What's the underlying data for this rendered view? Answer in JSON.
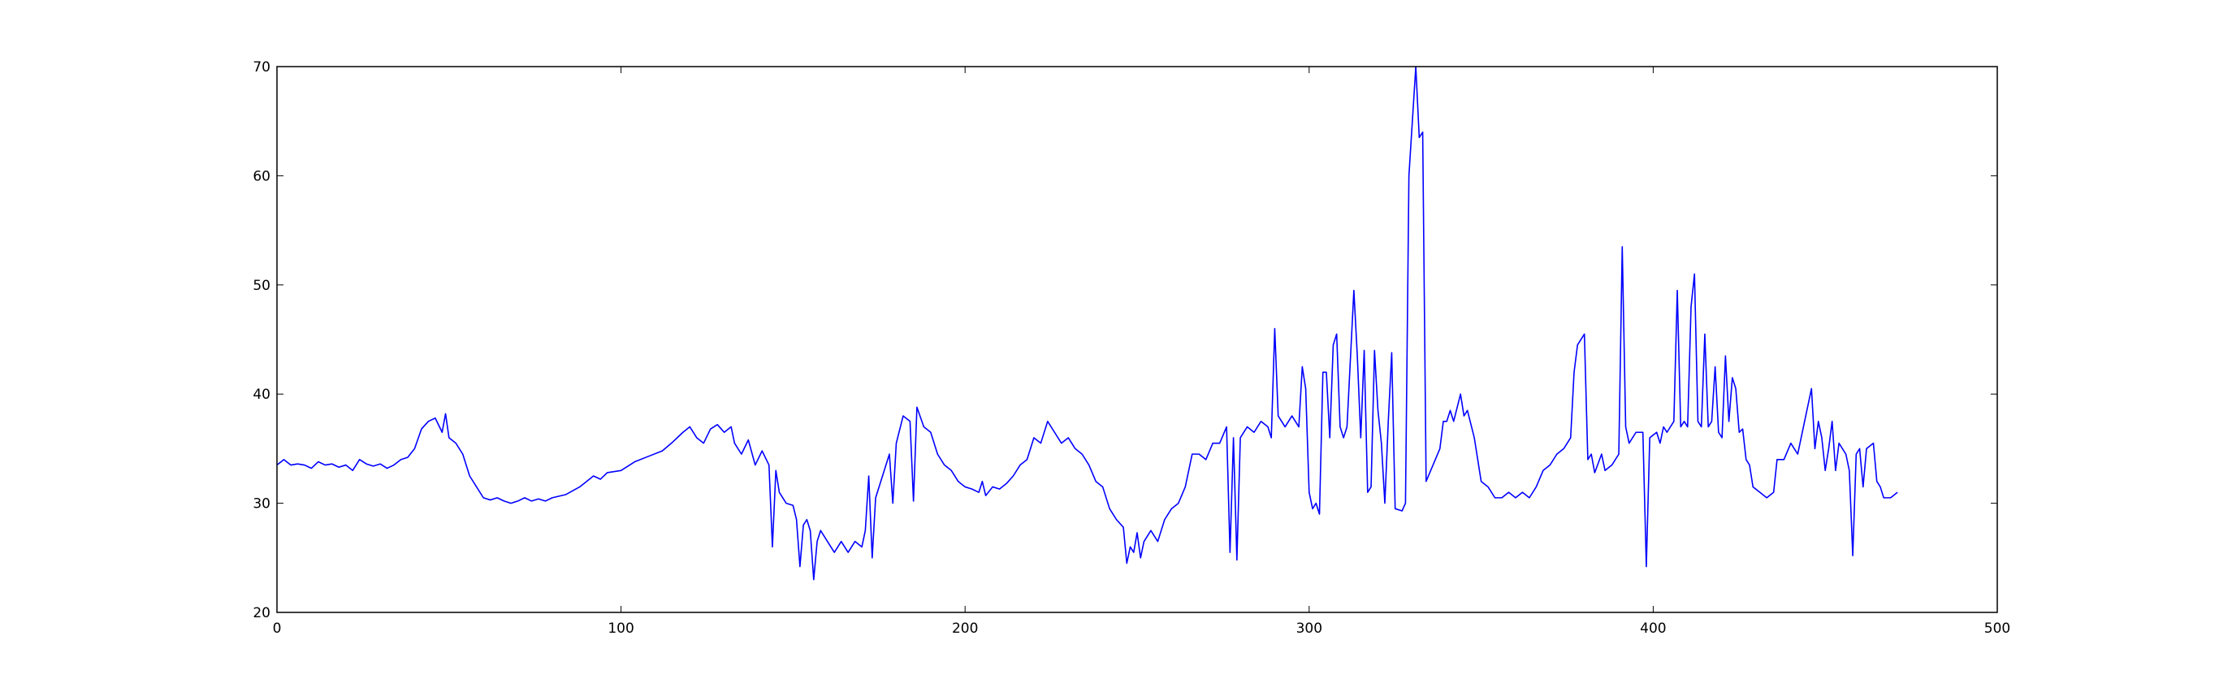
{
  "chart_data": {
    "type": "line",
    "title": "",
    "xlabel": "",
    "ylabel": "",
    "xlim": [
      0,
      500
    ],
    "ylim": [
      20,
      70
    ],
    "x_ticks": [
      0,
      100,
      200,
      300,
      400,
      500
    ],
    "y_ticks": [
      20,
      30,
      40,
      50,
      60,
      70
    ],
    "x_tick_labels": [
      "0",
      "100",
      "200",
      "300",
      "400",
      "500"
    ],
    "y_tick_labels": [
      "20",
      "30",
      "40",
      "50",
      "60",
      "70"
    ],
    "grid": false,
    "legend": "none",
    "line_color": "#0000ff",
    "series": [
      {
        "keypoints": [
          [
            0,
            33.5
          ],
          [
            2,
            34.0
          ],
          [
            4,
            33.5
          ],
          [
            6,
            33.6
          ],
          [
            8,
            33.5
          ],
          [
            10,
            33.2
          ],
          [
            12,
            33.8
          ],
          [
            14,
            33.5
          ],
          [
            16,
            33.6
          ],
          [
            18,
            33.3
          ],
          [
            20,
            33.5
          ],
          [
            22,
            33.0
          ],
          [
            24,
            34.0
          ],
          [
            26,
            33.6
          ],
          [
            28,
            33.4
          ],
          [
            30,
            33.6
          ],
          [
            32,
            33.2
          ],
          [
            34,
            33.5
          ],
          [
            36,
            34.0
          ],
          [
            38,
            34.2
          ],
          [
            40,
            35.0
          ],
          [
            42,
            36.8
          ],
          [
            44,
            37.5
          ],
          [
            46,
            37.8
          ],
          [
            48,
            36.5
          ],
          [
            49,
            38.2
          ],
          [
            50,
            36.0
          ],
          [
            52,
            35.5
          ],
          [
            54,
            34.5
          ],
          [
            56,
            32.5
          ],
          [
            58,
            31.5
          ],
          [
            60,
            30.5
          ],
          [
            62,
            30.3
          ],
          [
            64,
            30.5
          ],
          [
            66,
            30.2
          ],
          [
            68,
            30.0
          ],
          [
            70,
            30.2
          ],
          [
            72,
            30.5
          ],
          [
            74,
            30.2
          ],
          [
            76,
            30.4
          ],
          [
            78,
            30.2
          ],
          [
            80,
            30.5
          ],
          [
            84,
            30.8
          ],
          [
            88,
            31.5
          ],
          [
            90,
            32.0
          ],
          [
            92,
            32.5
          ],
          [
            94,
            32.2
          ],
          [
            96,
            32.8
          ],
          [
            100,
            33.0
          ],
          [
            104,
            33.8
          ],
          [
            108,
            34.3
          ],
          [
            112,
            34.8
          ],
          [
            115,
            35.6
          ],
          [
            118,
            36.5
          ],
          [
            120,
            37.0
          ],
          [
            122,
            36.0
          ],
          [
            124,
            35.5
          ],
          [
            126,
            36.8
          ],
          [
            128,
            37.2
          ],
          [
            130,
            36.5
          ],
          [
            132,
            37.0
          ],
          [
            133,
            35.5
          ],
          [
            135,
            34.5
          ],
          [
            137,
            35.8
          ],
          [
            139,
            33.5
          ],
          [
            141,
            34.8
          ],
          [
            143,
            33.5
          ],
          [
            144,
            26.0
          ],
          [
            145,
            33.0
          ],
          [
            146,
            31.0
          ],
          [
            148,
            30.0
          ],
          [
            150,
            29.8
          ],
          [
            151,
            28.5
          ],
          [
            152,
            24.2
          ],
          [
            153,
            28.0
          ],
          [
            154,
            28.5
          ],
          [
            155,
            27.5
          ],
          [
            156,
            23.0
          ],
          [
            157,
            26.5
          ],
          [
            158,
            27.5
          ],
          [
            160,
            26.5
          ],
          [
            162,
            25.5
          ],
          [
            164,
            26.5
          ],
          [
            166,
            25.5
          ],
          [
            168,
            26.5
          ],
          [
            170,
            26.0
          ],
          [
            171,
            27.5
          ],
          [
            172,
            32.5
          ],
          [
            173,
            25.0
          ],
          [
            174,
            30.5
          ],
          [
            176,
            32.5
          ],
          [
            178,
            34.5
          ],
          [
            179,
            30.0
          ],
          [
            180,
            35.5
          ],
          [
            182,
            38.0
          ],
          [
            184,
            37.5
          ],
          [
            185,
            30.2
          ],
          [
            186,
            38.8
          ],
          [
            188,
            37.0
          ],
          [
            190,
            36.5
          ],
          [
            192,
            34.5
          ],
          [
            194,
            33.5
          ],
          [
            196,
            33.0
          ],
          [
            198,
            32.0
          ],
          [
            200,
            31.5
          ],
          [
            202,
            31.3
          ],
          [
            204,
            31.0
          ],
          [
            205,
            32.0
          ],
          [
            206,
            30.7
          ],
          [
            208,
            31.5
          ],
          [
            210,
            31.3
          ],
          [
            212,
            31.8
          ],
          [
            214,
            32.5
          ],
          [
            216,
            33.5
          ],
          [
            218,
            34.0
          ],
          [
            220,
            36.0
          ],
          [
            222,
            35.5
          ],
          [
            224,
            37.5
          ],
          [
            226,
            36.5
          ],
          [
            228,
            35.5
          ],
          [
            230,
            36.0
          ],
          [
            232,
            35.0
          ],
          [
            234,
            34.5
          ],
          [
            236,
            33.5
          ],
          [
            238,
            32.0
          ],
          [
            240,
            31.5
          ],
          [
            242,
            29.5
          ],
          [
            244,
            28.5
          ],
          [
            246,
            27.8
          ],
          [
            247,
            24.5
          ],
          [
            248,
            26.0
          ],
          [
            249,
            25.5
          ],
          [
            250,
            27.3
          ],
          [
            251,
            25.0
          ],
          [
            252,
            26.5
          ],
          [
            254,
            27.5
          ],
          [
            256,
            26.5
          ],
          [
            258,
            28.5
          ],
          [
            260,
            29.5
          ],
          [
            262,
            30.0
          ],
          [
            264,
            31.5
          ],
          [
            266,
            34.5
          ],
          [
            268,
            34.5
          ],
          [
            270,
            34.0
          ],
          [
            272,
            35.5
          ],
          [
            274,
            35.5
          ],
          [
            276,
            37.0
          ],
          [
            277,
            25.5
          ],
          [
            278,
            36.0
          ],
          [
            279,
            24.8
          ],
          [
            280,
            36.0
          ],
          [
            282,
            37.0
          ],
          [
            284,
            36.5
          ],
          [
            286,
            37.5
          ],
          [
            288,
            37.0
          ],
          [
            289,
            36.0
          ],
          [
            290,
            46.0
          ],
          [
            291,
            38.0
          ],
          [
            293,
            37.0
          ],
          [
            295,
            38.0
          ],
          [
            297,
            37.0
          ],
          [
            298,
            42.5
          ],
          [
            299,
            40.5
          ],
          [
            300,
            31.0
          ],
          [
            301,
            29.5
          ],
          [
            302,
            30.0
          ],
          [
            303,
            29.0
          ],
          [
            304,
            42.0
          ],
          [
            305,
            42.0
          ],
          [
            306,
            36.0
          ],
          [
            307,
            44.5
          ],
          [
            308,
            45.5
          ],
          [
            309,
            37.0
          ],
          [
            310,
            36.0
          ],
          [
            311,
            37.0
          ],
          [
            313,
            49.5
          ],
          [
            314,
            43.5
          ],
          [
            315,
            36.0
          ],
          [
            316,
            44.0
          ],
          [
            317,
            31.0
          ],
          [
            318,
            31.5
          ],
          [
            319,
            44.0
          ],
          [
            320,
            38.5
          ],
          [
            321,
            35.5
          ],
          [
            322,
            30.0
          ],
          [
            323,
            37.5
          ],
          [
            324,
            43.8
          ],
          [
            325,
            29.5
          ],
          [
            327,
            29.3
          ],
          [
            328,
            30.0
          ],
          [
            329,
            60.0
          ],
          [
            330,
            65.0
          ],
          [
            331,
            70.0
          ],
          [
            332,
            63.5
          ],
          [
            333,
            64.0
          ],
          [
            334,
            32.0
          ],
          [
            336,
            33.5
          ],
          [
            338,
            35.0
          ],
          [
            339,
            37.5
          ],
          [
            340,
            37.5
          ],
          [
            341,
            38.5
          ],
          [
            342,
            37.5
          ],
          [
            344,
            40.0
          ],
          [
            345,
            38.0
          ],
          [
            346,
            38.5
          ],
          [
            348,
            36.0
          ],
          [
            350,
            32.0
          ],
          [
            352,
            31.5
          ],
          [
            354,
            30.5
          ],
          [
            356,
            30.5
          ],
          [
            358,
            31.0
          ],
          [
            360,
            30.5
          ],
          [
            362,
            31.0
          ],
          [
            364,
            30.5
          ],
          [
            366,
            31.5
          ],
          [
            368,
            33.0
          ],
          [
            370,
            33.5
          ],
          [
            372,
            34.5
          ],
          [
            374,
            35.0
          ],
          [
            376,
            36.0
          ],
          [
            377,
            42.0
          ],
          [
            378,
            44.5
          ],
          [
            380,
            45.5
          ],
          [
            381,
            34.0
          ],
          [
            382,
            34.5
          ],
          [
            383,
            32.8
          ],
          [
            385,
            34.5
          ],
          [
            386,
            33.0
          ],
          [
            388,
            33.5
          ],
          [
            390,
            34.5
          ],
          [
            391,
            53.5
          ],
          [
            392,
            37.0
          ],
          [
            393,
            35.5
          ],
          [
            395,
            36.5
          ],
          [
            397,
            36.5
          ],
          [
            398,
            24.2
          ],
          [
            399,
            36.0
          ],
          [
            401,
            36.5
          ],
          [
            402,
            35.5
          ],
          [
            403,
            37.0
          ],
          [
            404,
            36.5
          ],
          [
            406,
            37.5
          ],
          [
            407,
            49.5
          ],
          [
            408,
            37.0
          ],
          [
            409,
            37.5
          ],
          [
            410,
            37.0
          ],
          [
            411,
            48.0
          ],
          [
            412,
            51.0
          ],
          [
            413,
            37.5
          ],
          [
            414,
            37.0
          ],
          [
            415,
            45.5
          ],
          [
            416,
            37.0
          ],
          [
            417,
            37.5
          ],
          [
            418,
            42.5
          ],
          [
            419,
            36.5
          ],
          [
            420,
            36.0
          ],
          [
            421,
            43.5
          ],
          [
            422,
            37.5
          ],
          [
            423,
            41.5
          ],
          [
            424,
            40.5
          ],
          [
            425,
            36.5
          ],
          [
            426,
            36.8
          ],
          [
            427,
            34.0
          ],
          [
            428,
            33.5
          ],
          [
            429,
            31.5
          ],
          [
            431,
            31.0
          ],
          [
            433,
            30.5
          ],
          [
            435,
            31.0
          ],
          [
            436,
            34.0
          ],
          [
            438,
            34.0
          ],
          [
            440,
            35.5
          ],
          [
            441,
            35.0
          ],
          [
            442,
            34.5
          ],
          [
            444,
            37.5
          ],
          [
            446,
            40.5
          ],
          [
            447,
            35.0
          ],
          [
            448,
            37.5
          ],
          [
            449,
            36.0
          ],
          [
            450,
            33.0
          ],
          [
            451,
            35.0
          ],
          [
            452,
            37.5
          ],
          [
            453,
            33.0
          ],
          [
            454,
            35.5
          ],
          [
            456,
            34.5
          ],
          [
            457,
            33.0
          ],
          [
            458,
            25.2
          ],
          [
            459,
            34.5
          ],
          [
            460,
            35.0
          ],
          [
            461,
            31.5
          ],
          [
            462,
            35.0
          ],
          [
            464,
            35.5
          ],
          [
            465,
            32.0
          ],
          [
            466,
            31.5
          ],
          [
            467,
            30.5
          ],
          [
            469,
            30.5
          ],
          [
            471,
            31.0
          ]
        ]
      }
    ]
  }
}
